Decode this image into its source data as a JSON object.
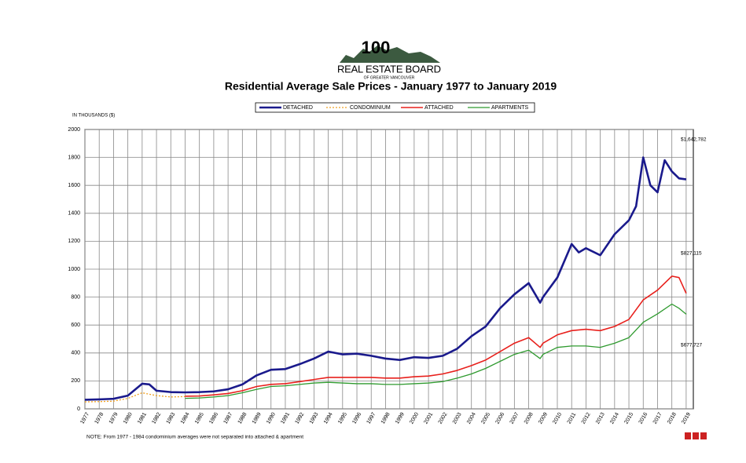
{
  "chart_data": {
    "type": "line",
    "logo": {
      "mark": "100",
      "name": "REAL ESTATE BOARD",
      "sub": "OF GREATER VANCOUVER"
    },
    "title": "Residential Average Sale Prices  -  January 1977 to January 2019",
    "y_label": "IN THOUSANDS ($)",
    "note": "NOTE:  From 1977 - 1984 condominium averages were not separated into attached & apartment",
    "annotations": [
      "$1,642,782",
      "$827,115",
      "$677,727"
    ],
    "xlim": [
      1977,
      2019.5
    ],
    "xticks": [
      1977,
      1978,
      1979,
      1980,
      1981,
      1982,
      1983,
      1984,
      1985,
      1986,
      1987,
      1988,
      1989,
      1990,
      1991,
      1992,
      1993,
      1994,
      1995,
      1996,
      1997,
      1998,
      1999,
      2000,
      2001,
      2002,
      2003,
      2004,
      2005,
      2006,
      2007,
      2008,
      2009,
      2010,
      2011,
      2012,
      2013,
      2014,
      2015,
      2016,
      2017,
      2018,
      2019
    ],
    "ylim": [
      0,
      2000
    ],
    "yticks": [
      0,
      200,
      400,
      600,
      800,
      1000,
      1200,
      1400,
      1600,
      1800,
      2000
    ],
    "grid": true,
    "series": [
      {
        "name": "DETACHED",
        "color": "#1a1a8c",
        "width": 2.6,
        "dashed": false,
        "x": [
          1977,
          1978,
          1979,
          1980,
          1981,
          1981.5,
          1982,
          1983,
          1984,
          1985,
          1986,
          1987,
          1988,
          1989,
          1990,
          1991,
          1992,
          1993,
          1994,
          1995,
          1996,
          1997,
          1998,
          1999,
          2000,
          2001,
          2002,
          2003,
          2004,
          2005,
          2006,
          2007,
          2008,
          2008.8,
          2009,
          2010,
          2011,
          2011.5,
          2012,
          2013,
          2014,
          2015,
          2015.5,
          2016,
          2016.5,
          2017,
          2017.5,
          2018,
          2018.5,
          2019
        ],
        "values": [
          65,
          68,
          72,
          95,
          180,
          175,
          130,
          120,
          118,
          120,
          125,
          140,
          175,
          240,
          280,
          285,
          320,
          360,
          410,
          390,
          395,
          380,
          360,
          350,
          370,
          365,
          380,
          430,
          520,
          590,
          720,
          820,
          900,
          760,
          800,
          940,
          1180,
          1120,
          1150,
          1100,
          1250,
          1350,
          1450,
          1800,
          1600,
          1550,
          1780,
          1700,
          1650,
          1642.782
        ]
      },
      {
        "name": "CONDOMINIUM",
        "color": "#f0a020",
        "width": 1.3,
        "dashed": true,
        "x": [
          1977,
          1978,
          1979,
          1980,
          1981,
          1982,
          1983,
          1984
        ],
        "values": [
          50,
          52,
          55,
          75,
          115,
          95,
          85,
          88
        ]
      },
      {
        "name": "ATTACHED",
        "color": "#e8201c",
        "width": 1.6,
        "dashed": false,
        "x": [
          1984,
          1985,
          1986,
          1987,
          1988,
          1989,
          1990,
          1991,
          1992,
          1993,
          1994,
          1995,
          1996,
          1997,
          1998,
          1999,
          2000,
          2001,
          2002,
          2003,
          2004,
          2005,
          2006,
          2007,
          2008,
          2008.8,
          2009,
          2010,
          2011,
          2012,
          2013,
          2014,
          2015,
          2016,
          2017,
          2018,
          2018.5,
          2019
        ],
        "values": [
          90,
          92,
          100,
          110,
          130,
          160,
          175,
          180,
          195,
          210,
          225,
          225,
          225,
          225,
          220,
          220,
          230,
          235,
          250,
          275,
          310,
          350,
          410,
          470,
          510,
          440,
          470,
          530,
          560,
          570,
          560,
          590,
          640,
          780,
          850,
          950,
          940,
          827.115
        ]
      },
      {
        "name": "APARTMENTS",
        "color": "#2e9a2e",
        "width": 1.3,
        "dashed": false,
        "x": [
          1984,
          1985,
          1986,
          1987,
          1988,
          1989,
          1990,
          1991,
          1992,
          1993,
          1994,
          1995,
          1996,
          1997,
          1998,
          1999,
          2000,
          2001,
          2002,
          2003,
          2004,
          2005,
          2006,
          2007,
          2008,
          2008.8,
          2009,
          2010,
          2011,
          2012,
          2013,
          2014,
          2015,
          2016,
          2017,
          2018,
          2018.5,
          2019
        ],
        "values": [
          75,
          78,
          85,
          95,
          115,
          140,
          160,
          165,
          175,
          185,
          190,
          185,
          180,
          180,
          175,
          175,
          180,
          185,
          195,
          220,
          250,
          290,
          340,
          390,
          420,
          360,
          390,
          440,
          450,
          450,
          440,
          470,
          510,
          620,
          680,
          750,
          720,
          677.727
        ]
      }
    ]
  }
}
